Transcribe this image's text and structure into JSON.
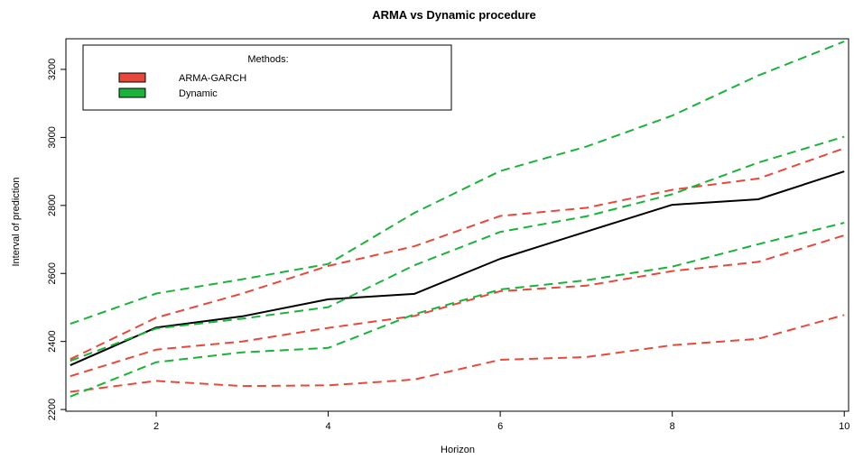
{
  "chart_data": {
    "type": "line",
    "title": "ARMA vs Dynamic procedure",
    "xlabel": "Horizon",
    "ylabel": "Interval of prediction",
    "xlim": [
      0.95,
      10.05
    ],
    "ylim": [
      2195,
      3290
    ],
    "x_ticks": [
      2,
      4,
      6,
      8,
      10
    ],
    "y_ticks": [
      2200,
      2400,
      2600,
      2800,
      3000,
      3200
    ],
    "x": [
      1,
      2,
      3,
      4,
      5,
      6,
      7,
      8,
      9,
      10
    ],
    "legend": {
      "title": "Methods:",
      "placement": "top-left",
      "entries": [
        {
          "label": "ARMA-GARCH",
          "color": "#e8483b"
        },
        {
          "label": "Dynamic",
          "color": "#1ab23a"
        }
      ]
    },
    "series": [
      {
        "values": [
          2330,
          2441,
          2474,
          2524,
          2540,
          2643,
          2723,
          2802,
          2818,
          2900
        ],
        "color": "#000000",
        "style": "solid"
      },
      {
        "values": [
          2348,
          2470,
          2541,
          2622,
          2680,
          2769,
          2793,
          2846,
          2879,
          2968
        ],
        "color": "#e8483b",
        "style": "dashed"
      },
      {
        "values": [
          2298,
          2376,
          2400,
          2440,
          2475,
          2548,
          2564,
          2607,
          2634,
          2712
        ],
        "color": "#e8483b",
        "style": "dashed"
      },
      {
        "values": [
          2252,
          2284,
          2269,
          2271,
          2288,
          2346,
          2354,
          2389,
          2408,
          2478
        ],
        "color": "#e8483b",
        "style": "dashed"
      },
      {
        "values": [
          2452,
          2541,
          2583,
          2628,
          2778,
          2901,
          2973,
          3064,
          3182,
          3282
        ],
        "color": "#1ab23a",
        "style": "dashed"
      },
      {
        "values": [
          2343,
          2438,
          2467,
          2501,
          2624,
          2722,
          2768,
          2833,
          2926,
          3002
        ],
        "color": "#1ab23a",
        "style": "dashed"
      },
      {
        "values": [
          2238,
          2339,
          2368,
          2381,
          2480,
          2553,
          2580,
          2620,
          2686,
          2749
        ],
        "color": "#1ab23a",
        "style": "dashed"
      }
    ]
  }
}
